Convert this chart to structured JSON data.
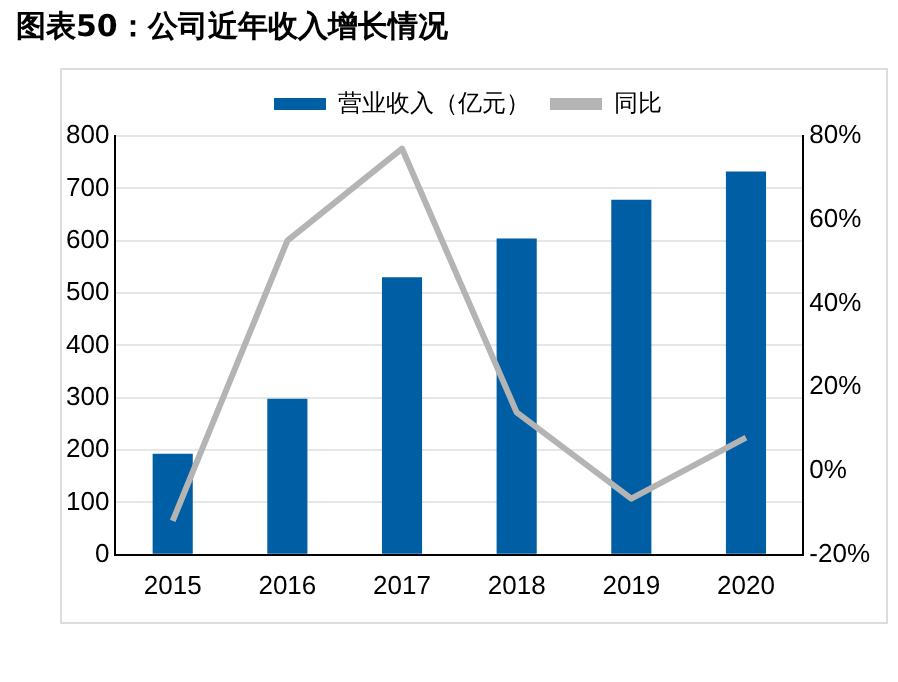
{
  "chart_data": {
    "type": "bar",
    "title": "图表50：公司近年收入增长情况",
    "categories": [
      "2015",
      "2016",
      "2017",
      "2018",
      "2019",
      "2020"
    ],
    "series": [
      {
        "name": "营业收入（亿元）",
        "color": "#005ea4",
        "values": [
          193,
          298,
          530,
          604,
          678,
          732
        ]
      },
      {
        "name": "同比",
        "type": "line",
        "axis": "y2",
        "color": "#b4b4b4",
        "values": [
          -11.9,
          55,
          77,
          14,
          -6.6,
          8
        ]
      }
    ],
    "ylim": [
      0,
      800
    ],
    "yticks": [
      0,
      100,
      200,
      300,
      400,
      500,
      600,
      700,
      800
    ],
    "y2lim": [
      -20,
      80
    ],
    "y2ticks": [
      {
        "value": -20,
        "label": "-20%"
      },
      {
        "value": 0,
        "label": "0%"
      },
      {
        "value": 20,
        "label": "20%"
      },
      {
        "value": 40,
        "label": "40%"
      },
      {
        "value": 60,
        "label": "60%"
      },
      {
        "value": 80,
        "label": "80%"
      }
    ],
    "grid": "y",
    "legend": "top",
    "marker": "none",
    "line_style": "solid"
  }
}
